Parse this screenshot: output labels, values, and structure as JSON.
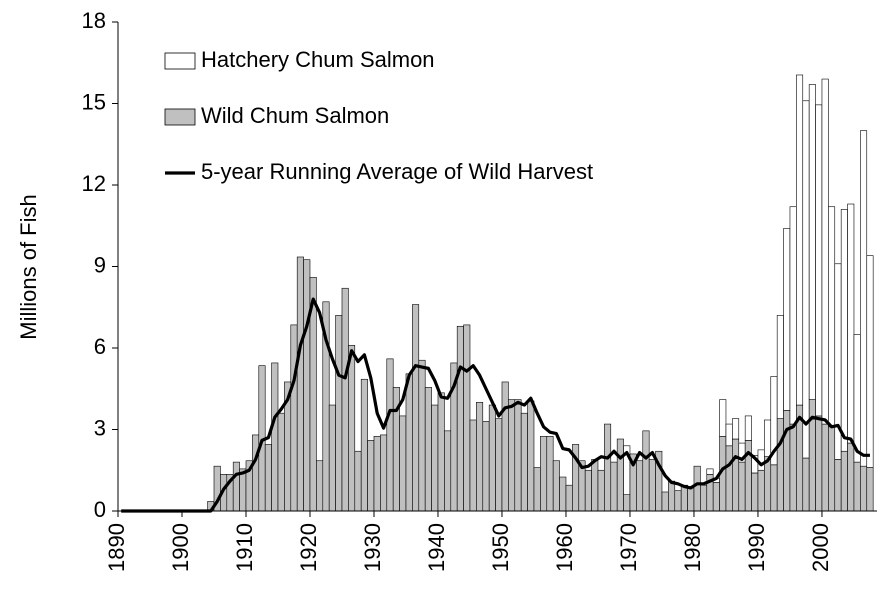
{
  "chart_data": {
    "type": "bar",
    "stacked": true,
    "ylabel": "Millions of Fish",
    "x": [
      1890,
      1891,
      1892,
      1893,
      1894,
      1895,
      1896,
      1897,
      1898,
      1899,
      1900,
      1901,
      1902,
      1903,
      1904,
      1905,
      1906,
      1907,
      1908,
      1909,
      1910,
      1911,
      1912,
      1913,
      1914,
      1915,
      1916,
      1917,
      1918,
      1919,
      1920,
      1921,
      1922,
      1923,
      1924,
      1925,
      1926,
      1927,
      1928,
      1929,
      1930,
      1931,
      1932,
      1933,
      1934,
      1935,
      1936,
      1937,
      1938,
      1939,
      1940,
      1941,
      1942,
      1943,
      1944,
      1945,
      1946,
      1947,
      1948,
      1949,
      1950,
      1951,
      1952,
      1953,
      1954,
      1955,
      1956,
      1957,
      1958,
      1959,
      1960,
      1961,
      1962,
      1963,
      1964,
      1965,
      1966,
      1967,
      1968,
      1969,
      1970,
      1971,
      1972,
      1973,
      1974,
      1975,
      1976,
      1977,
      1978,
      1979,
      1980,
      1981,
      1982,
      1983,
      1984,
      1985,
      1986,
      1987,
      1988,
      1989,
      1990,
      1991,
      1992,
      1993,
      1994,
      1995,
      1996,
      1997,
      1998,
      1999,
      2000,
      2001,
      2002,
      2003,
      2004,
      2005,
      2006,
      2007
    ],
    "series": [
      {
        "name": "Wild Chum Salmon",
        "color": "#c0c0c0",
        "values": [
          0,
          0,
          0,
          0,
          0,
          0,
          0,
          0,
          0,
          0,
          0,
          0,
          0,
          0,
          0.35,
          1.65,
          1.35,
          1.35,
          1.8,
          1.55,
          1.85,
          2.8,
          5.35,
          2.45,
          5.45,
          3.6,
          4.75,
          6.85,
          9.35,
          9.25,
          8.6,
          1.85,
          7.7,
          3.9,
          7.2,
          8.2,
          6.1,
          2.2,
          4.85,
          2.6,
          2.75,
          2.8,
          5.6,
          4.55,
          3.5,
          5.05,
          7.6,
          5.55,
          4.55,
          3.9,
          4.35,
          2.95,
          5.45,
          6.8,
          6.85,
          3.35,
          4.0,
          3.3,
          3.9,
          3.4,
          4.75,
          4.1,
          4.1,
          3.6,
          4.05,
          1.6,
          2.75,
          2.75,
          1.85,
          1.25,
          0.95,
          2.45,
          1.85,
          1.5,
          1.9,
          1.5,
          3.2,
          1.8,
          2.65,
          0.6,
          2.1,
          1.85,
          2.95,
          1.9,
          2.2,
          0.7,
          1.1,
          0.75,
          0.95,
          0.85,
          1.65,
          0.95,
          1.35,
          1.05,
          2.75,
          2.4,
          2.65,
          1.8,
          2.6,
          1.4,
          1.5,
          2.0,
          1.7,
          3.4,
          3.7,
          3.2,
          3.9,
          1.95,
          4.1,
          3.5,
          3.2,
          3.1,
          1.9,
          2.2,
          2.5,
          1.8,
          1.65,
          1.6
        ]
      },
      {
        "name": "Hatchery Chum Salmon",
        "color": "#ffffff",
        "values": [
          0,
          0,
          0,
          0,
          0,
          0,
          0,
          0,
          0,
          0,
          0,
          0,
          0,
          0,
          0,
          0,
          0,
          0,
          0,
          0,
          0,
          0,
          0,
          0,
          0,
          0,
          0,
          0,
          0,
          0,
          0,
          0,
          0,
          0,
          0,
          0,
          0,
          0,
          0,
          0,
          0,
          0,
          0,
          0,
          0,
          0,
          0,
          0,
          0,
          0,
          0,
          0,
          0,
          0,
          0,
          0,
          0,
          0,
          0,
          0,
          0,
          0,
          0,
          0,
          0,
          0,
          0,
          0,
          0,
          0,
          0,
          0,
          0,
          0,
          0,
          0,
          0,
          0,
          0,
          1.8,
          0,
          0,
          0,
          0,
          0,
          0,
          0,
          0,
          0,
          0,
          0,
          0,
          0.2,
          0.15,
          1.35,
          0.8,
          0.75,
          0.7,
          0.9,
          0.65,
          0.75,
          1.35,
          3.25,
          3.8,
          6.7,
          8.0,
          12.15,
          13.15,
          11.6,
          11.45,
          12.7,
          8.1,
          7.2,
          8.9,
          8.8,
          4.7,
          12.35,
          7.8
        ]
      },
      {
        "name": "5-year Running Average of Wild Harvest",
        "type": "line",
        "color": "#000000",
        "values": [
          0,
          0,
          0,
          0,
          0,
          0,
          0,
          0,
          0,
          0,
          0,
          0,
          0,
          0,
          0,
          0.35,
          0.8,
          1.1,
          1.35,
          1.4,
          1.5,
          1.9,
          2.6,
          2.7,
          3.45,
          3.75,
          4.1,
          4.8,
          6.1,
          6.8,
          7.8,
          7.3,
          6.3,
          5.6,
          5.0,
          4.9,
          5.9,
          5.5,
          5.75,
          4.9,
          3.6,
          3.05,
          3.7,
          3.7,
          4.1,
          5.0,
          5.35,
          5.3,
          5.25,
          4.8,
          4.2,
          4.15,
          4.6,
          5.3,
          5.15,
          5.35,
          5.0,
          4.5,
          4.0,
          3.5,
          3.8,
          3.85,
          4.0,
          3.9,
          4.15,
          3.6,
          3.1,
          2.9,
          2.85,
          2.3,
          2.25,
          1.95,
          1.6,
          1.65,
          1.85,
          2.0,
          1.95,
          2.2,
          1.95,
          2.15,
          1.7,
          2.15,
          1.95,
          2.15,
          1.7,
          1.3,
          1.05,
          1.0,
          0.9,
          0.85,
          1.0,
          1.0,
          1.1,
          1.2,
          1.55,
          1.7,
          2.0,
          1.9,
          2.15,
          1.95,
          1.7,
          1.85,
          2.2,
          2.5,
          3.0,
          3.1,
          3.45,
          3.2,
          3.45,
          3.4,
          3.35,
          3.1,
          3.15,
          2.7,
          2.65,
          2.2,
          2.05,
          2.05
        ]
      }
    ],
    "xlim": [
      1890,
      2008.6
    ],
    "xticks": [
      1890,
      1900,
      1910,
      1920,
      1930,
      1940,
      1950,
      1960,
      1970,
      1980,
      1990,
      2000
    ],
    "ylim": [
      0,
      18
    ],
    "yticks": [
      0,
      3,
      6,
      9,
      12,
      15,
      18
    ],
    "grid": false,
    "legend": "upper left"
  }
}
